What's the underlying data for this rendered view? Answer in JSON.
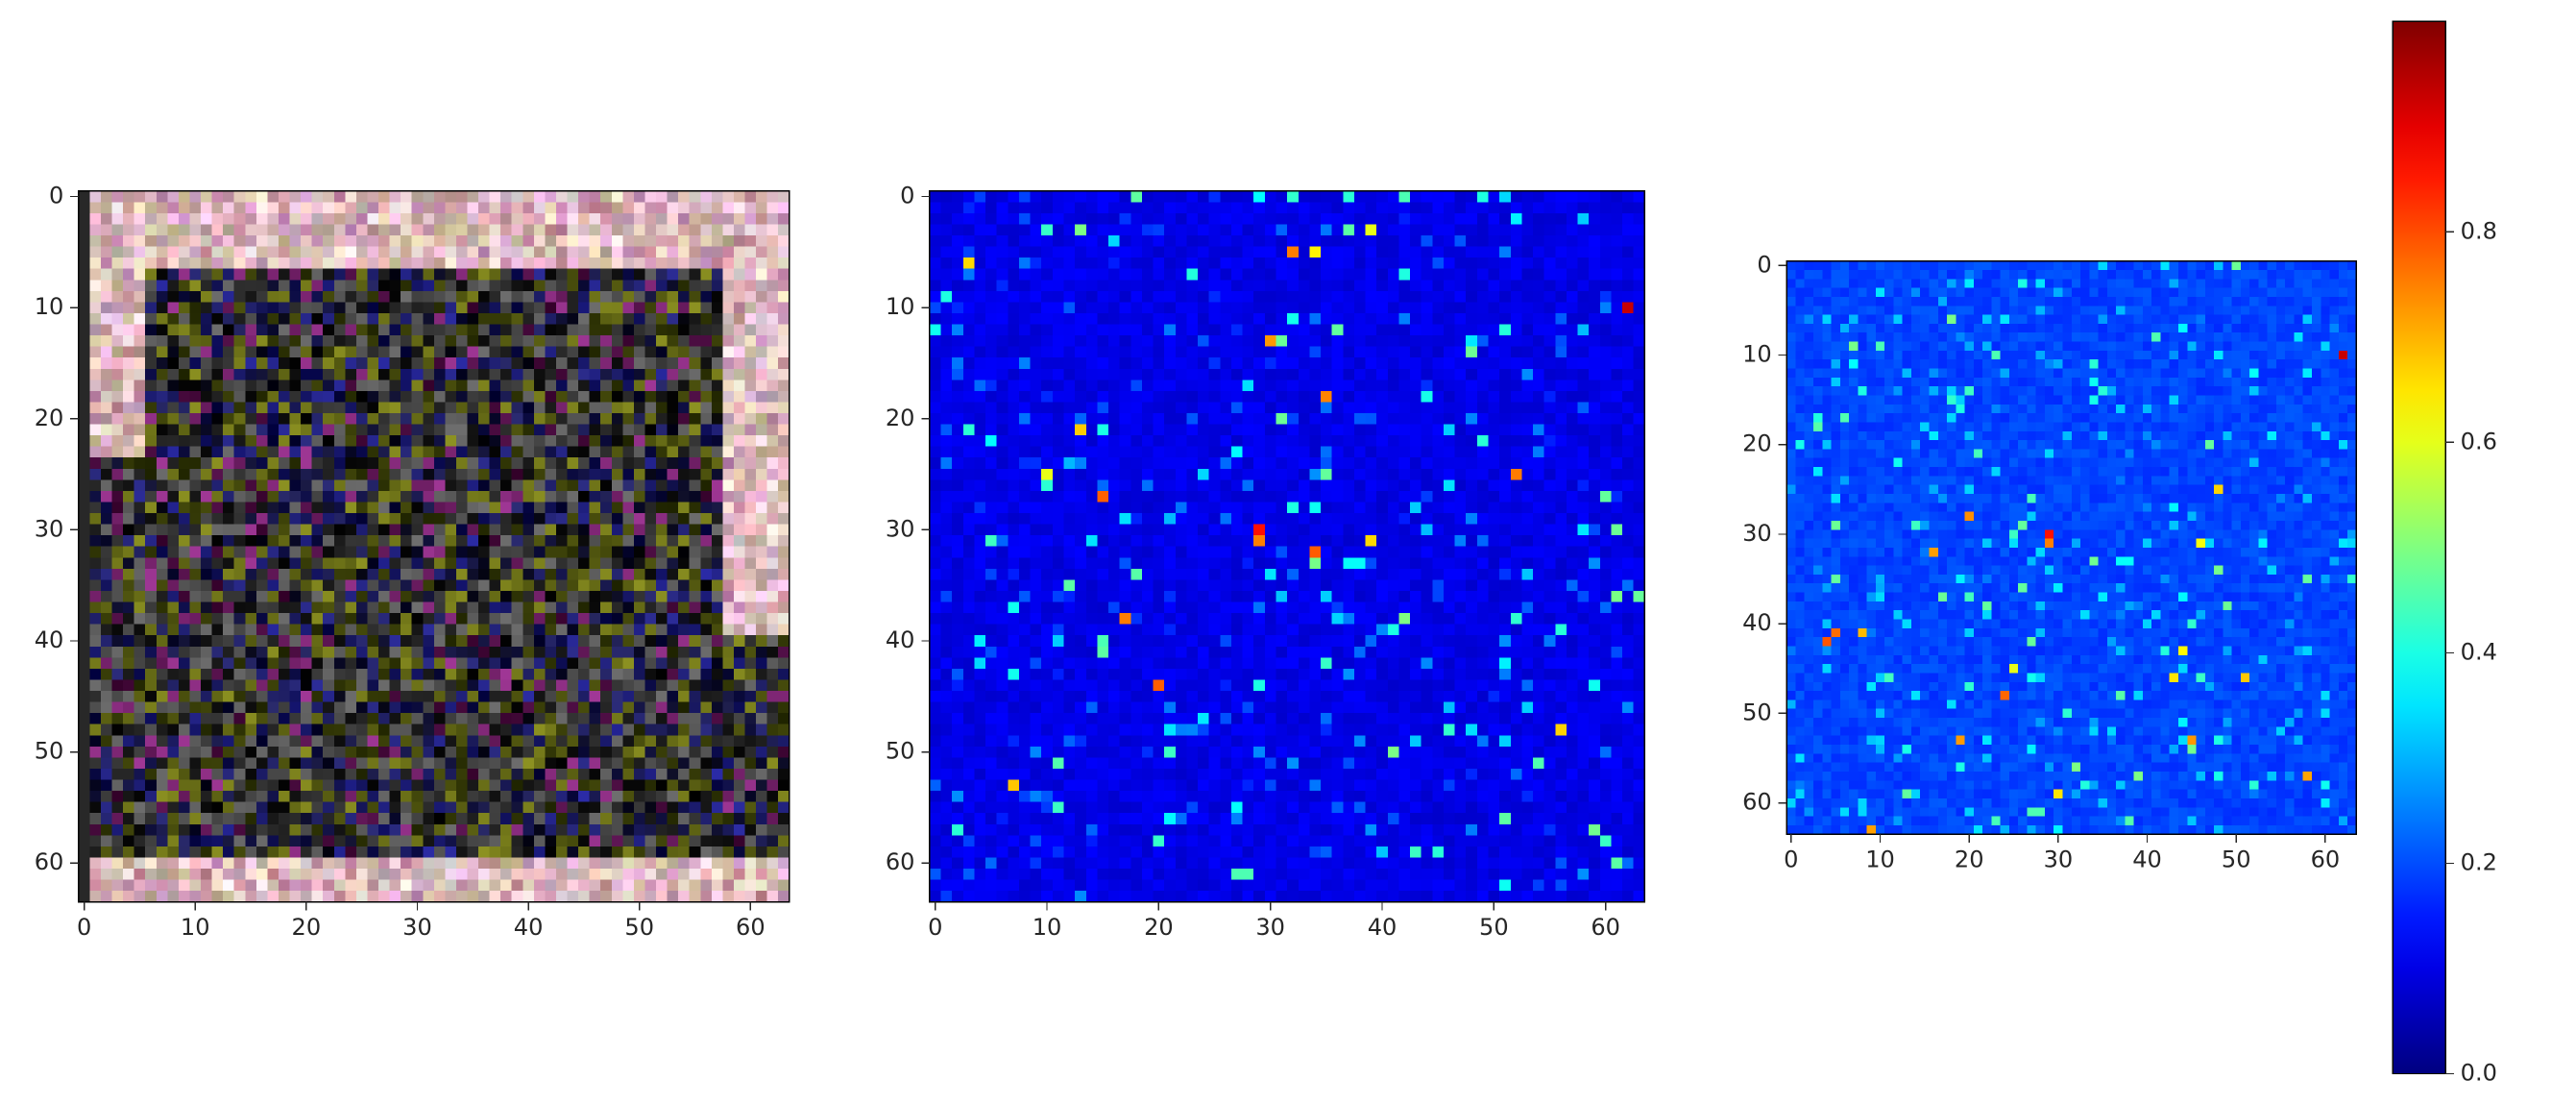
{
  "chart_data": [
    {
      "type": "image",
      "colormap": "rgb",
      "xlim": [
        -0.5,
        63.5
      ],
      "ylim": [
        63.5,
        -0.5
      ],
      "xticks": [
        0,
        10,
        20,
        30,
        40,
        50,
        60
      ],
      "yticks": [
        0,
        10,
        20,
        30,
        40,
        50,
        60
      ]
    },
    {
      "type": "image",
      "colormap": "jet",
      "xlim": [
        -0.5,
        63.5
      ],
      "ylim": [
        63.5,
        -0.5
      ],
      "xticks": [
        0,
        10,
        20,
        30,
        40,
        50,
        60
      ],
      "yticks": [
        0,
        10,
        20,
        30,
        40,
        50,
        60
      ]
    },
    {
      "type": "image",
      "colormap": "jet",
      "xlim": [
        -0.5,
        63.5
      ],
      "ylim": [
        63.5,
        -0.5
      ],
      "xticks": [
        0,
        10,
        20,
        30,
        40,
        50,
        60
      ],
      "yticks": [
        0,
        10,
        20,
        30,
        40,
        50,
        60
      ]
    },
    {
      "type": "colorbar",
      "colormap": "jet",
      "ylim": [
        0,
        1
      ],
      "yticks": [
        {
          "value": 0,
          "label": "0.0"
        },
        {
          "value": 0.2,
          "label": "0.2"
        },
        {
          "value": 0.4,
          "label": "0.4"
        },
        {
          "value": 0.6,
          "label": "0.6"
        },
        {
          "value": 0.8,
          "label": "0.8"
        }
      ]
    }
  ]
}
